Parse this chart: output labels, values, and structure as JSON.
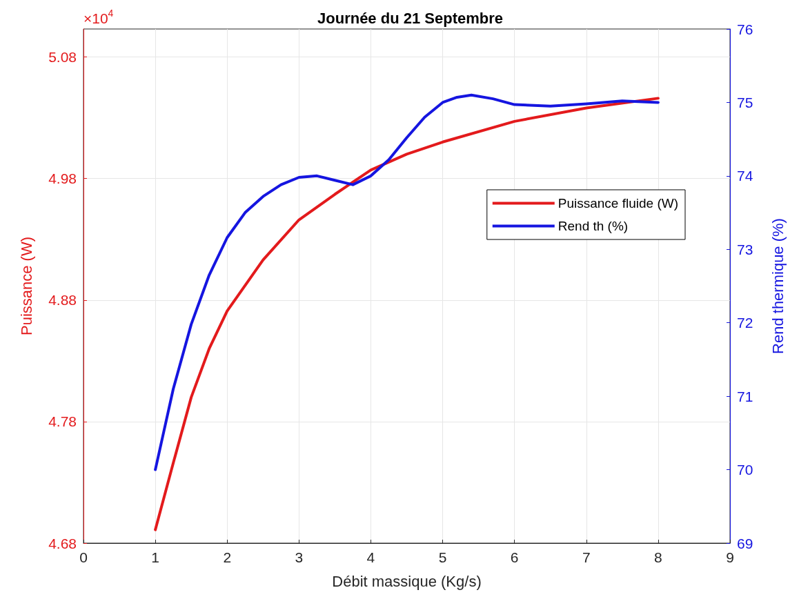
{
  "chart_data": {
    "type": "line",
    "title": "Journée du 21 Septembre",
    "xlabel": "Débit massique (Kg/s)",
    "ylabel": "Puissance (W)",
    "y2label": "Rend thermique (%)",
    "annotations": [
      "×10$^{4}$"
    ],
    "xlim": [
      0,
      9
    ],
    "xticks": [
      0,
      1,
      2,
      3,
      4,
      5,
      6,
      7,
      8,
      9
    ],
    "ylim": [
      4.68,
      5.103
    ],
    "yticks": [
      4.68,
      4.78,
      4.88,
      4.98,
      5.08
    ],
    "y2lim": [
      69,
      76
    ],
    "y2ticks": [
      69,
      70,
      71,
      72,
      73,
      74,
      75,
      76
    ],
    "grid": true,
    "legend": "right",
    "line_style": "solid",
    "series": [
      {
        "name": "Puissance fluide (W)",
        "color": "#e31a1c",
        "x": [
          1,
          1.25,
          1.5,
          1.75,
          2,
          2.5,
          3,
          3.5,
          4,
          4.5,
          5,
          6,
          7,
          8
        ],
        "values": [
          4.691,
          4.746,
          4.8,
          4.84,
          4.871,
          4.913,
          4.946,
          4.967,
          4.987,
          5.0,
          5.01,
          5.027,
          5.038,
          5.046
        ]
      },
      {
        "name": "Rend th (%)",
        "color": "#1515e0",
        "axis": "y2",
        "x": [
          1,
          1.25,
          1.5,
          1.75,
          2,
          2.25,
          2.5,
          2.75,
          3,
          3.25,
          3.5,
          3.75,
          4,
          4.25,
          4.5,
          4.75,
          5,
          5.2,
          5.4,
          5.7,
          6,
          6.5,
          7,
          7.5,
          8
        ],
        "values": [
          70.0,
          71.1,
          71.98,
          72.65,
          73.16,
          73.5,
          73.72,
          73.88,
          73.98,
          74.0,
          73.94,
          73.88,
          74.0,
          74.22,
          74.52,
          74.8,
          75.0,
          75.07,
          75.1,
          75.05,
          74.97,
          74.95,
          74.98,
          75.02,
          75.0
        ]
      }
    ]
  }
}
